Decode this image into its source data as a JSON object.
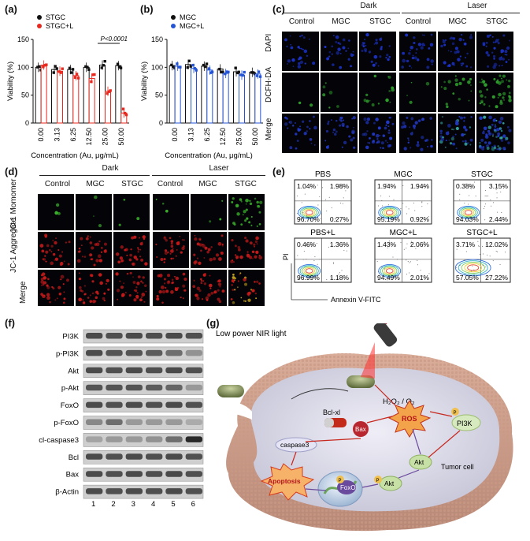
{
  "panels": {
    "a": {
      "label": "(a)"
    },
    "b": {
      "label": "(b)"
    },
    "c": {
      "label": "(c)"
    },
    "d": {
      "label": "(d)"
    },
    "e": {
      "label": "(e)"
    },
    "f": {
      "label": "(f)"
    },
    "g": {
      "label": "(g)"
    }
  },
  "chart_data": [
    {
      "type": "bar",
      "panel": "a",
      "categories": [
        "0.00",
        "3.13",
        "6.25",
        "12.50",
        "25.00",
        "50.00"
      ],
      "series": [
        {
          "name": "STGC",
          "values": [
            100,
            96,
            96,
            100,
            104,
            103
          ],
          "color": "#111111"
        },
        {
          "name": "STGC+L",
          "values": [
            104,
            93,
            85,
            80,
            57,
            18
          ],
          "color": "#e8281e"
        }
      ],
      "xlabel": "Concentration (Au, μg/mL)",
      "ylabel": "Viability (%)",
      "ylim": [
        0,
        150
      ],
      "yticks": [
        "0",
        "50",
        "100",
        "150"
      ],
      "annotation": "P<0.0001"
    },
    {
      "type": "bar",
      "panel": "b",
      "categories": [
        "0.00",
        "3.13",
        "6.25",
        "12.50",
        "25.00",
        "50.00"
      ],
      "series": [
        {
          "name": "MGC",
          "values": [
            103,
            105,
            102,
            97,
            92,
            91
          ],
          "color": "#111111"
        },
        {
          "name": "MGC+L",
          "values": [
            102,
            98,
            95,
            89,
            86,
            88
          ],
          "color": "#2455d6"
        }
      ],
      "xlabel": "Concentration (Au, μg/mL)",
      "ylabel": "Viability (%)",
      "ylim": [
        0,
        150
      ],
      "yticks": [
        "0",
        "50",
        "100",
        "150"
      ]
    }
  ],
  "panel_c": {
    "groups": [
      "Dark",
      "Laser"
    ],
    "columns": [
      "Control",
      "MGC",
      "STGC",
      "Control",
      "MGC",
      "STGC"
    ],
    "rows": [
      "DAPI",
      "DCFH-DA",
      "Merge"
    ]
  },
  "panel_d": {
    "groups": [
      "Dark",
      "Laser"
    ],
    "columns": [
      "Control",
      "MGC",
      "STGC",
      "Control",
      "MGC",
      "STGC"
    ],
    "rows": [
      "JC-1 Momomer",
      "JC-1 Aggregate",
      "Merge"
    ]
  },
  "panel_e": {
    "plots": [
      {
        "title": "PBS",
        "q": [
          "1.04%",
          "1.98%",
          "96.70%",
          "0.27%"
        ]
      },
      {
        "title": "MGC",
        "q": [
          "1.94%",
          "1.94%",
          "95.19%",
          "0.92%"
        ]
      },
      {
        "title": "STGC",
        "q": [
          "0.38%",
          "3.15%",
          "94.03%",
          "2.44%"
        ]
      },
      {
        "title": "PBS+L",
        "q": [
          "0.46%",
          "1.36%",
          "96.99%",
          "1.18%"
        ]
      },
      {
        "title": "MGC+L",
        "q": [
          "1.43%",
          "2.06%",
          "94.49%",
          "2.01%"
        ]
      },
      {
        "title": "STGC+L",
        "q": [
          "3.71%",
          "12.02%",
          "57.05%",
          "27.22%"
        ]
      }
    ],
    "yaxis": "PI",
    "xaxis": "Annexin V-FITC"
  },
  "panel_f": {
    "rows": [
      "PI3K",
      "p-PI3K",
      "Akt",
      "p-Akt",
      "FoxO",
      "p-FoxO",
      "cl-caspase3",
      "Bcl",
      "Bax",
      "β-Actin"
    ],
    "lanes": [
      "1",
      "2",
      "3",
      "4",
      "5",
      "6"
    ]
  },
  "panel_g": {
    "light": "Low power NIR light",
    "h2o2": "H₂O₂ / O₂",
    "bclxl": "Bcl-xl",
    "ros": "ROS",
    "bax": "Bax",
    "p": "P",
    "pi3k": "PI3K",
    "caspase": "caspase3",
    "akt": "Akt",
    "tumor": "Tumor cell",
    "apoptosis": "Apoptosis",
    "foxo": "FoxO"
  }
}
